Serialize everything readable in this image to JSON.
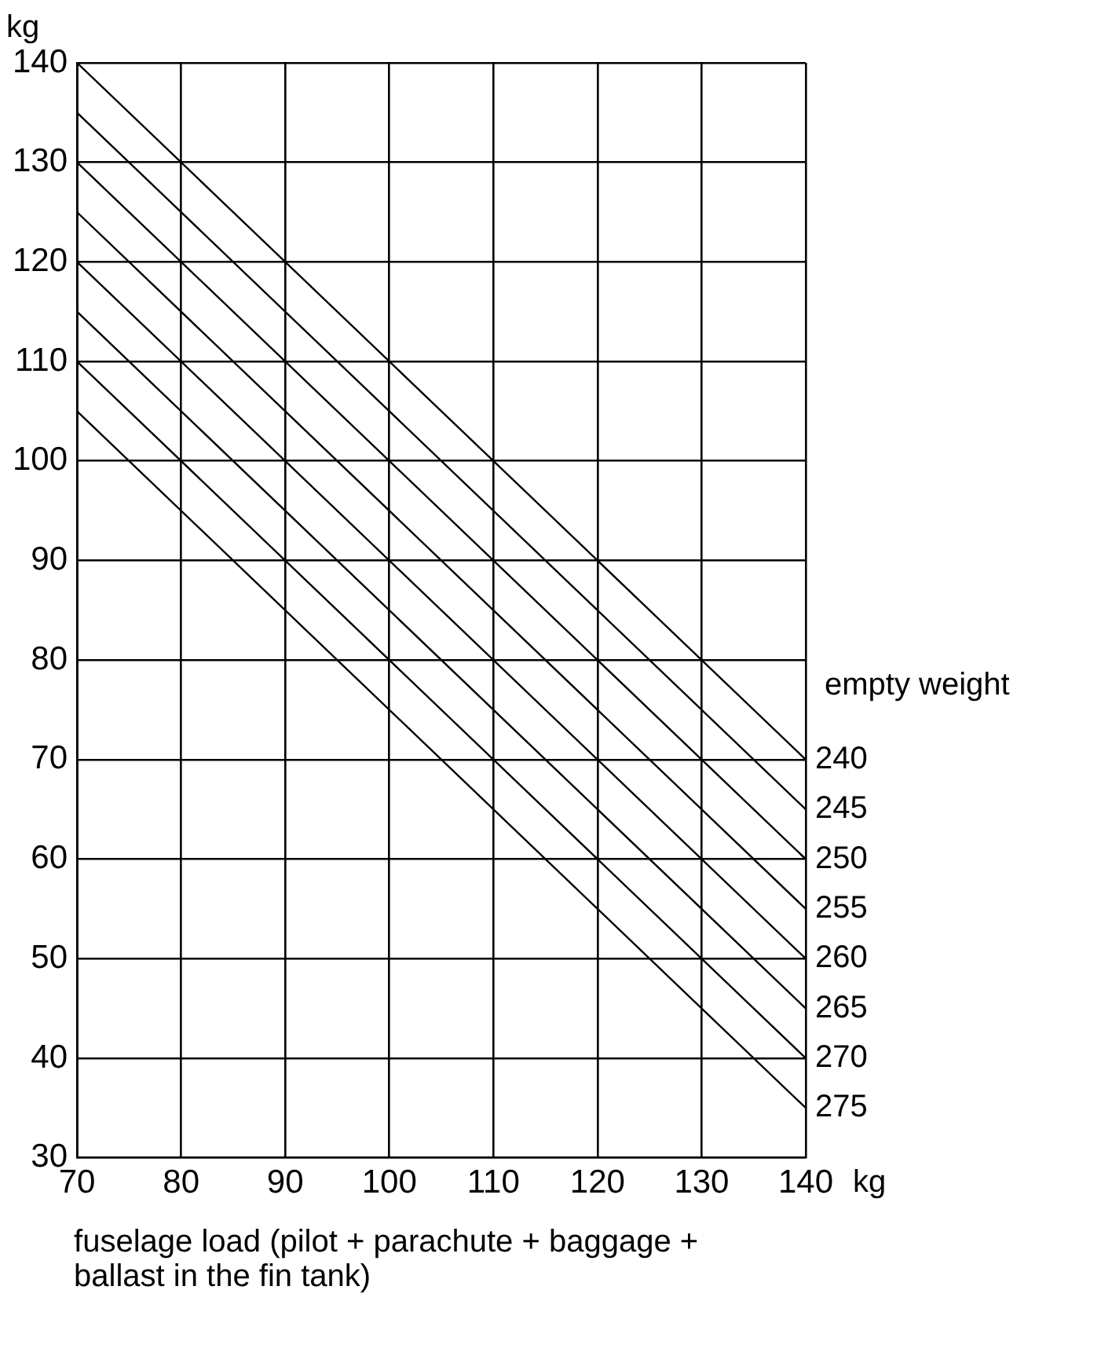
{
  "chart_data": {
    "type": "line",
    "ylabel": "kg",
    "xlabel": "fuselage load (pilot + parachute + baggage + ballast in the fin tank)",
    "legend_title": "empty weight",
    "annotations": [
      "kg"
    ],
    "x": [
      70,
      140
    ],
    "series": [
      {
        "name": "240",
        "color": "#000000",
        "values": [
          140,
          70
        ]
      },
      {
        "name": "245",
        "color": "#000000",
        "values": [
          135,
          65
        ]
      },
      {
        "name": "250",
        "color": "#000000",
        "values": [
          130,
          60
        ]
      },
      {
        "name": "255",
        "color": "#000000",
        "values": [
          125,
          55
        ]
      },
      {
        "name": "260",
        "color": "#000000",
        "values": [
          120,
          50
        ]
      },
      {
        "name": "265",
        "color": "#000000",
        "values": [
          115,
          45
        ]
      },
      {
        "name": "270",
        "color": "#000000",
        "values": [
          110,
          40
        ]
      },
      {
        "name": "275",
        "color": "#000000",
        "values": [
          105,
          35
        ]
      }
    ],
    "xlim": [
      70,
      140
    ],
    "xticks": [
      70,
      80,
      90,
      100,
      110,
      120,
      130,
      140
    ],
    "ylim": [
      30,
      140
    ],
    "yticks": [
      30,
      40,
      50,
      60,
      70,
      80,
      90,
      100,
      110,
      120,
      130,
      140
    ],
    "grid": true,
    "legend": false,
    "marker": "none",
    "line_style": "solid"
  }
}
